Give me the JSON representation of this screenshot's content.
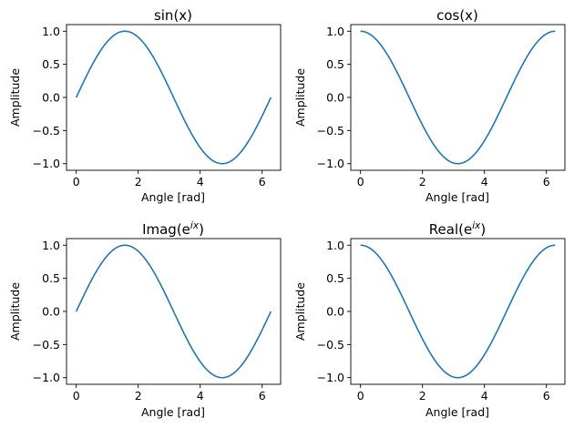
{
  "figure": {
    "line_color": "#1f77b4",
    "background": "#ffffff",
    "axes_color": "#000000"
  },
  "chart_data": [
    {
      "type": "line",
      "title": "sin(x)",
      "title_parts": {
        "base": "sin(x)",
        "sup": "",
        "close": ""
      },
      "function": "sin",
      "x": [
        0,
        0.3307,
        0.6614,
        0.9921,
        1.3228,
        1.6535,
        1.9842,
        2.3149,
        2.6456,
        2.9762,
        3.3069,
        3.6376,
        3.9683,
        4.299,
        4.6297,
        4.9604,
        5.2911,
        5.6218,
        5.9525,
        6.2832
      ],
      "series": [
        {
          "name": "sin",
          "values": [
            0,
            0.3247,
            0.6142,
            0.8372,
            0.9694,
            0.9966,
            0.9158,
            0.7357,
            0.4759,
            0.1646,
            -0.1646,
            -0.4759,
            -0.7357,
            -0.9158,
            -0.9966,
            -0.9694,
            -0.8372,
            -0.6142,
            -0.3247,
            0
          ]
        }
      ],
      "xlabel": "Angle [rad]",
      "ylabel": "Amplitude",
      "xlim": [
        -0.314,
        6.597
      ],
      "ylim": [
        -1.1,
        1.1
      ],
      "xticks": [
        0,
        2,
        4,
        6
      ],
      "yticks": [
        1.0,
        0.5,
        0.0,
        -0.5,
        -1.0
      ],
      "xtick_labels": [
        "0",
        "2",
        "4",
        "6"
      ],
      "ytick_labels": [
        "1.0",
        "0.5",
        "0.0",
        "−0.5",
        "−1.0"
      ]
    },
    {
      "type": "line",
      "title": "cos(x)",
      "title_parts": {
        "base": "cos(x)",
        "sup": "",
        "close": ""
      },
      "function": "cos",
      "x": [
        0,
        0.3307,
        0.6614,
        0.9921,
        1.3228,
        1.6535,
        1.9842,
        2.3149,
        2.6456,
        2.9762,
        3.3069,
        3.6376,
        3.9683,
        4.299,
        4.6297,
        4.9604,
        5.2911,
        5.6218,
        5.9525,
        6.2832
      ],
      "series": [
        {
          "name": "cos",
          "values": [
            1,
            0.9458,
            0.7891,
            0.5469,
            0.2455,
            -0.0826,
            -0.4017,
            -0.6773,
            -0.8795,
            -0.9864,
            -0.9864,
            -0.8795,
            -0.6773,
            -0.4017,
            -0.0826,
            0.2455,
            0.5469,
            0.7891,
            0.9458,
            1
          ]
        }
      ],
      "xlabel": "Angle [rad]",
      "ylabel": "Amplitude",
      "xlim": [
        -0.314,
        6.597
      ],
      "ylim": [
        -1.1,
        1.1
      ],
      "xticks": [
        0,
        2,
        4,
        6
      ],
      "yticks": [
        1.0,
        0.5,
        0.0,
        -0.5,
        -1.0
      ],
      "xtick_labels": [
        "0",
        "2",
        "4",
        "6"
      ],
      "ytick_labels": [
        "1.0",
        "0.5",
        "0.0",
        "−0.5",
        "−1.0"
      ]
    },
    {
      "type": "line",
      "title": "Imag(e^ix)",
      "title_parts": {
        "base": "Imag(e",
        "sup": "ix",
        "close": ")"
      },
      "function": "sin",
      "x": [
        0,
        0.3307,
        0.6614,
        0.9921,
        1.3228,
        1.6535,
        1.9842,
        2.3149,
        2.6456,
        2.9762,
        3.3069,
        3.6376,
        3.9683,
        4.299,
        4.6297,
        4.9604,
        5.2911,
        5.6218,
        5.9525,
        6.2832
      ],
      "series": [
        {
          "name": "Imag(e^ix)",
          "values": [
            0,
            0.3247,
            0.6142,
            0.8372,
            0.9694,
            0.9966,
            0.9158,
            0.7357,
            0.4759,
            0.1646,
            -0.1646,
            -0.4759,
            -0.7357,
            -0.9158,
            -0.9966,
            -0.9694,
            -0.8372,
            -0.6142,
            -0.3247,
            0
          ]
        }
      ],
      "xlabel": "Angle [rad]",
      "ylabel": "Amplitude",
      "xlim": [
        -0.314,
        6.597
      ],
      "ylim": [
        -1.1,
        1.1
      ],
      "xticks": [
        0,
        2,
        4,
        6
      ],
      "yticks": [
        1.0,
        0.5,
        0.0,
        -0.5,
        -1.0
      ],
      "xtick_labels": [
        "0",
        "2",
        "4",
        "6"
      ],
      "ytick_labels": [
        "1.0",
        "0.5",
        "0.0",
        "−0.5",
        "−1.0"
      ]
    },
    {
      "type": "line",
      "title": "Real(e^ix)",
      "title_parts": {
        "base": "Real(e",
        "sup": "ix",
        "close": ")"
      },
      "function": "cos",
      "x": [
        0,
        0.3307,
        0.6614,
        0.9921,
        1.3228,
        1.6535,
        1.9842,
        2.3149,
        2.6456,
        2.9762,
        3.3069,
        3.6376,
        3.9683,
        4.299,
        4.6297,
        4.9604,
        5.2911,
        5.6218,
        5.9525,
        6.2832
      ],
      "series": [
        {
          "name": "Real(e^ix)",
          "values": [
            1,
            0.9458,
            0.7891,
            0.5469,
            0.2455,
            -0.0826,
            -0.4017,
            -0.6773,
            -0.8795,
            -0.9864,
            -0.9864,
            -0.8795,
            -0.6773,
            -0.4017,
            -0.0826,
            0.2455,
            0.5469,
            0.7891,
            0.9458,
            1
          ]
        }
      ],
      "xlabel": "Angle [rad]",
      "ylabel": "Amplitude",
      "xlim": [
        -0.314,
        6.597
      ],
      "ylim": [
        -1.1,
        1.1
      ],
      "xticks": [
        0,
        2,
        4,
        6
      ],
      "yticks": [
        1.0,
        0.5,
        0.0,
        -0.5,
        -1.0
      ],
      "xtick_labels": [
        "0",
        "2",
        "4",
        "6"
      ],
      "ytick_labels": [
        "1.0",
        "0.5",
        "0.0",
        "−0.5",
        "−1.0"
      ]
    }
  ]
}
